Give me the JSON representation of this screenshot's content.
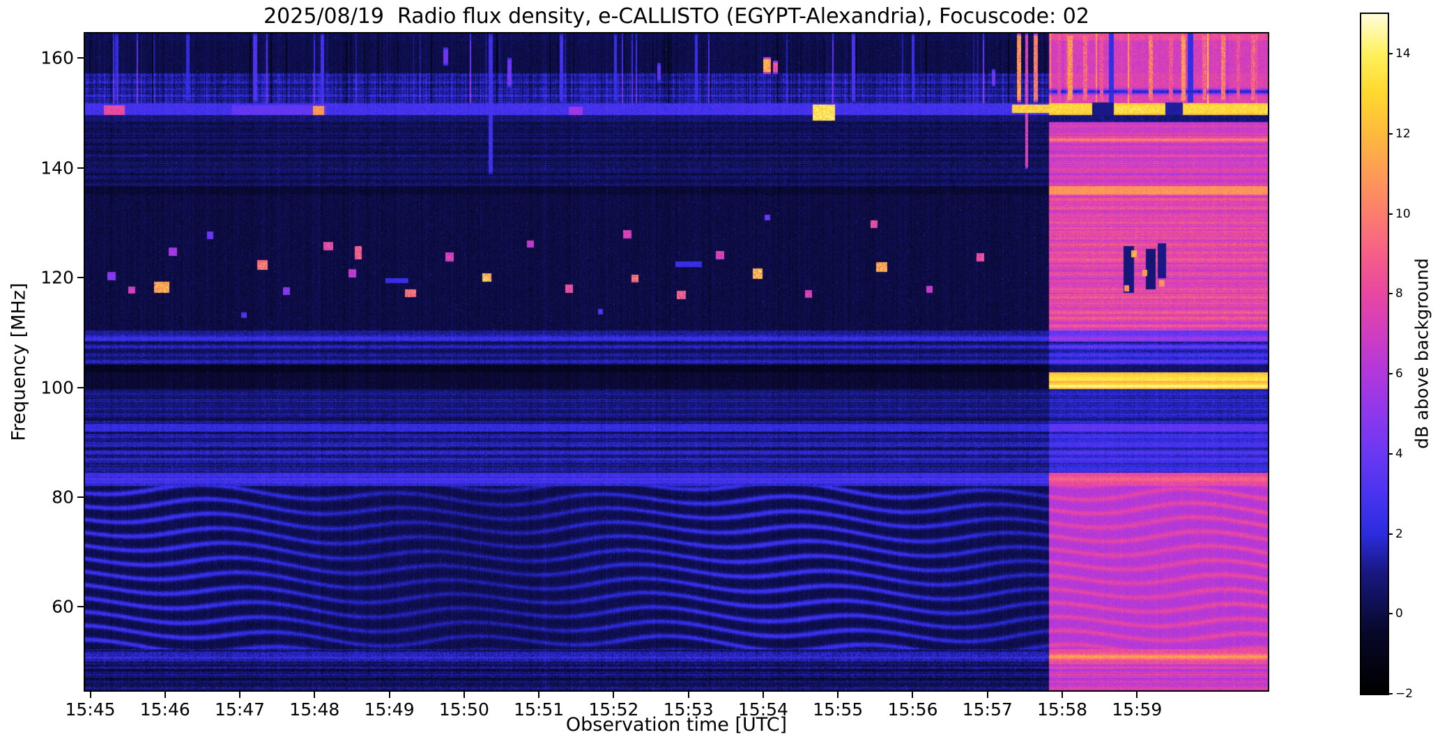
{
  "chart_data": {
    "type": "heatmap",
    "title": "2025/08/19  Radio flux density, e-CALLISTO (EGYPT-Alexandria), Focuscode: 02",
    "xlabel": "Observation time [UTC]",
    "ylabel": "Frequency [MHz]",
    "x_ticks": [
      "15:45",
      "15:46",
      "15:47",
      "15:48",
      "15:49",
      "15:50",
      "15:51",
      "15:52",
      "15:53",
      "15:54",
      "15:55",
      "15:56",
      "15:57",
      "15:58",
      "15:59"
    ],
    "x_tick_minutes": [
      0,
      1,
      2,
      3,
      4,
      5,
      6,
      7,
      8,
      9,
      10,
      11,
      12,
      13,
      14
    ],
    "x_range_minutes": [
      -0.07,
      15.75
    ],
    "y_ticks": [
      60,
      80,
      100,
      120,
      140,
      160
    ],
    "y_range_mhz": [
      44.8,
      164.5
    ],
    "grid": false,
    "colorbar": {
      "label": "dB above background",
      "vmin": -2,
      "vmax": 15,
      "ticks": [
        [
          14,
          "14"
        ],
        [
          12,
          "12"
        ],
        [
          10,
          "10"
        ],
        [
          8,
          "8"
        ],
        [
          6,
          "6"
        ],
        [
          4,
          "4"
        ],
        [
          2,
          "2"
        ],
        [
          0,
          "0"
        ],
        [
          -2,
          "−2"
        ]
      ]
    },
    "colormap_stops": [
      [
        -2,
        [
          0,
          0,
          0
        ]
      ],
      [
        -0.5,
        [
          8,
          8,
          42
        ]
      ],
      [
        1,
        [
          24,
          24,
          128
        ]
      ],
      [
        2,
        [
          45,
          45,
          224
        ]
      ],
      [
        3,
        [
          75,
          52,
          240
        ]
      ],
      [
        4,
        [
          108,
          56,
          243
        ]
      ],
      [
        5,
        [
          142,
          56,
          236
        ]
      ],
      [
        6,
        [
          177,
          56,
          221
        ]
      ],
      [
        7,
        [
          209,
          62,
          192
        ]
      ],
      [
        8,
        [
          233,
          72,
          162
        ]
      ],
      [
        9,
        [
          246,
          96,
          136
        ]
      ],
      [
        10,
        [
          252,
          126,
          110
        ]
      ],
      [
        11,
        [
          254,
          156,
          86
        ]
      ],
      [
        12,
        [
          255,
          186,
          62
        ]
      ],
      [
        13,
        [
          255,
          216,
          46
        ]
      ],
      [
        14,
        [
          255,
          241,
          94
        ]
      ],
      [
        15,
        [
          255,
          253,
          222
        ]
      ]
    ],
    "features": {
      "bright_region_start_min": 12.82,
      "fringe_band_mhz": [
        52.3,
        82.0
      ],
      "bands": [
        {
          "f": [
            44.8,
            49.5
          ],
          "L": {
            "base": 0.55,
            "noise": 1.1,
            "hstripe": 0.9
          },
          "R": {
            "base": 7.0,
            "noise": 1.2,
            "hstripe": 1.0
          }
        },
        {
          "f": [
            49.5,
            52.3
          ],
          "L": {
            "base": 1.0,
            "noise": 1.2,
            "hstripe": 0.7,
            "lines": [
              [
                50.9,
                1.3
              ]
            ]
          },
          "R": {
            "base": 8.2,
            "noise": 1.2,
            "lines": [
              [
                50.9,
                3.0
              ]
            ]
          }
        },
        {
          "f": [
            52.3,
            82.0
          ],
          "L": {
            "base": 0.15,
            "noise": 0.7,
            "fringe": 2.4
          },
          "R": {
            "base": 6.2,
            "noise": 1.1,
            "fringe": 2.8
          }
        },
        {
          "f": [
            82.0,
            84.4
          ],
          "L": {
            "base": 2.3,
            "noise": 1.0,
            "hstripe": 0.8,
            "lines": [
              [
                83.3,
                0.9
              ]
            ]
          },
          "R": {
            "base": 8.0,
            "noise": 1.1,
            "lines": [
              [
                83.3,
                1.2
              ]
            ]
          }
        },
        {
          "f": [
            84.4,
            92.0
          ],
          "L": {
            "base": 1.1,
            "noise": 0.9,
            "hstripe": 1.1
          },
          "R": {
            "base": 2.4,
            "noise": 0.9,
            "hstripe": 1.1
          }
        },
        {
          "f": [
            92.0,
            93.3
          ],
          "L": {
            "base": 2.2,
            "noise": 0.8
          },
          "R": {
            "base": 3.6,
            "noise": 0.8
          }
        },
        {
          "f": [
            93.3,
            99.7
          ],
          "L": {
            "base": 0.8,
            "noise": 0.8,
            "hstripe": 0.6
          },
          "R": {
            "base": 1.6,
            "noise": 0.8,
            "hstripe": 0.6
          }
        },
        {
          "f": [
            99.7,
            102.7
          ],
          "L": {
            "base": -0.3,
            "noise": 0.5
          },
          "R": {
            "base": 12.8,
            "noise": 0.9,
            "hstripe": 1.0,
            "lines": [
              [
                100.2,
                1.0
              ],
              [
                101.9,
                0.8
              ]
            ]
          }
        },
        {
          "f": [
            102.7,
            104.2
          ],
          "L": {
            "base": -0.8,
            "noise": 0.4
          },
          "R": {
            "base": 0.6,
            "noise": 0.8
          }
        },
        {
          "f": [
            104.2,
            108.3
          ],
          "L": {
            "base": 0.1,
            "noise": 0.8,
            "lines": [
              [
                104.7,
                1.7
              ],
              [
                105.9,
                1.2
              ],
              [
                107.4,
                1.7
              ]
            ]
          },
          "R": {
            "base": 1.0,
            "noise": 1.0,
            "lines": [
              [
                104.7,
                2.6
              ],
              [
                105.9,
                2.0
              ],
              [
                107.4,
                2.9
              ]
            ]
          }
        },
        {
          "f": [
            108.3,
            110.4
          ],
          "L": {
            "base": 1.2,
            "noise": 0.9,
            "lines": [
              [
                108.9,
                1.4
              ]
            ]
          },
          "R": {
            "base": 3.8,
            "noise": 1.2,
            "lines": [
              [
                108.9,
                1.8
              ]
            ]
          }
        },
        {
          "f": [
            110.4,
            135.2
          ],
          "L": {
            "base": 0.0,
            "noise": 0.7
          },
          "R": {
            "base": 7.8,
            "noise": 1.3,
            "hstripe": 1.1
          }
        },
        {
          "f": [
            135.2,
            136.7
          ],
          "L": {
            "base": -0.3,
            "noise": 0.5
          },
          "R": {
            "base": 10.8,
            "noise": 1.0
          }
        },
        {
          "f": [
            136.7,
            148.3
          ],
          "L": {
            "base": 0.4,
            "noise": 0.9,
            "hstripe": 0.5
          },
          "R": {
            "base": 7.2,
            "noise": 1.2,
            "hstripe": 0.9,
            "lines": [
              [
                145.2,
                2.5
              ]
            ]
          }
        },
        {
          "f": [
            148.3,
            149.6
          ],
          "L": {
            "base": 0.8,
            "noise": 0.8
          },
          "R": {
            "base": 0.8,
            "noise": 0.9
          }
        },
        {
          "f": [
            149.6,
            151.8
          ],
          "L": {
            "base": 2.8,
            "noise": 1.0
          },
          "R": {
            "base": 12.5,
            "noise": 1.3
          }
        },
        {
          "f": [
            151.8,
            157.2
          ],
          "L": {
            "base": 1.3,
            "noise": 1.1,
            "hstripe": 0.7,
            "vstreak": 1.0,
            "vnoise": 1
          },
          "R": {
            "base": 7.6,
            "noise": 1.4,
            "vstreak": 1.0,
            "lines": [
              [
                153.9,
                -6
              ]
            ]
          }
        },
        {
          "f": [
            157.2,
            163.2
          ],
          "L": {
            "base": 0.1,
            "noise": 0.6,
            "vstreak": 1.0
          },
          "R": {
            "base": 7.2,
            "noise": 1.4,
            "vstreak": 1.0
          }
        },
        {
          "f": [
            163.2,
            164.6
          ],
          "L": {
            "base": 0.3,
            "noise": 0.8,
            "vstreak": 0.6
          },
          "R": {
            "base": 8.2,
            "noise": 1.2,
            "vstreak": 0.8
          }
        }
      ],
      "blobs": [
        [
          0.28,
          120.3,
          0.1,
          1.4,
          6
        ],
        [
          0.55,
          117.8,
          0.08,
          1.2,
          9
        ],
        [
          0.95,
          118.3,
          0.2,
          2.0,
          14
        ],
        [
          1.1,
          124.8,
          0.1,
          1.4,
          7
        ],
        [
          1.6,
          127.8,
          0.08,
          1.2,
          5
        ],
        [
          2.3,
          122.4,
          0.13,
          1.6,
          12
        ],
        [
          2.62,
          117.6,
          0.08,
          1.2,
          6
        ],
        [
          3.18,
          125.8,
          0.12,
          1.5,
          10
        ],
        [
          3.5,
          120.9,
          0.1,
          1.4,
          8
        ],
        [
          3.58,
          124.6,
          0.08,
          2.4,
          11
        ],
        [
          4.28,
          117.2,
          0.14,
          1.3,
          12
        ],
        [
          4.8,
          123.8,
          0.1,
          1.5,
          9
        ],
        [
          5.3,
          120.1,
          0.12,
          1.5,
          15
        ],
        [
          5.88,
          126.2,
          0.08,
          1.2,
          8
        ],
        [
          6.4,
          118.0,
          0.1,
          1.4,
          10
        ],
        [
          7.18,
          128.0,
          0.1,
          1.4,
          9
        ],
        [
          7.28,
          119.9,
          0.08,
          1.2,
          12
        ],
        [
          7.9,
          116.9,
          0.12,
          1.3,
          11
        ],
        [
          8.42,
          124.1,
          0.1,
          1.4,
          9
        ],
        [
          8.92,
          120.8,
          0.12,
          1.7,
          15
        ],
        [
          9.6,
          117.1,
          0.08,
          1.2,
          9
        ],
        [
          10.48,
          129.8,
          0.08,
          1.3,
          10
        ],
        [
          10.58,
          122.0,
          0.14,
          1.7,
          14
        ],
        [
          11.22,
          117.9,
          0.08,
          1.2,
          8
        ],
        [
          11.9,
          123.8,
          0.1,
          1.4,
          10
        ],
        [
          2.05,
          113.2,
          0.06,
          0.9,
          4
        ],
        [
          6.82,
          113.9,
          0.06,
          0.9,
          4
        ],
        [
          9.05,
          131.0,
          0.06,
          0.9,
          5
        ],
        [
          4.1,
          119.5,
          0.3,
          0.8,
          3
        ],
        [
          8.0,
          122.5,
          0.35,
          0.8,
          3
        ]
      ],
      "vstreaks": [
        [
          5.35,
          139,
          164.5,
          0.05,
          3.2
        ],
        [
          9.05,
          157.3,
          160.2,
          0.09,
          14
        ],
        [
          9.16,
          157.3,
          159.6,
          0.05,
          10
        ],
        [
          4.75,
          158.8,
          162.0,
          0.05,
          5
        ],
        [
          5.6,
          154.8,
          160.0,
          0.05,
          5
        ],
        [
          7.6,
          155.8,
          159.2,
          0.04,
          4.5
        ],
        [
          12.08,
          155.0,
          158.0,
          0.04,
          5
        ],
        [
          2.2,
          152.0,
          164.5,
          0.04,
          3.8
        ],
        [
          3.1,
          150.0,
          164.5,
          0.035,
          3.4
        ],
        [
          6.3,
          152.0,
          164.5,
          0.035,
          3.4
        ],
        [
          7.02,
          152.0,
          164.5,
          0.035,
          3.0
        ],
        [
          8.1,
          152.0,
          164.5,
          0.035,
          3.0
        ],
        [
          10.2,
          152.0,
          164.5,
          0.035,
          3.6
        ],
        [
          11.0,
          152.0,
          164.5,
          0.035,
          3.0
        ],
        [
          0.35,
          152.0,
          164.5,
          0.03,
          2.6
        ],
        [
          1.3,
          152.0,
          164.5,
          0.03,
          2.6
        ],
        [
          12.42,
          152,
          164.8,
          0.05,
          13
        ],
        [
          12.52,
          140,
          164.8,
          0.035,
          9
        ],
        [
          12.64,
          152,
          164.8,
          0.05,
          12
        ],
        [
          12.95,
          152,
          164.8,
          0.04,
          9
        ],
        [
          13.1,
          152,
          164.8,
          0.055,
          13
        ],
        [
          13.3,
          152,
          164.8,
          0.045,
          11
        ],
        [
          13.52,
          152,
          164.8,
          0.04,
          10
        ],
        [
          13.9,
          152,
          164.8,
          0.04,
          9
        ],
        [
          14.18,
          152,
          164.8,
          0.05,
          12
        ],
        [
          14.45,
          152,
          164.8,
          0.04,
          10
        ],
        [
          14.62,
          152,
          164.8,
          0.05,
          13
        ],
        [
          14.9,
          152,
          164.8,
          0.04,
          11
        ],
        [
          15.15,
          152,
          164.8,
          0.05,
          12
        ],
        [
          15.35,
          152,
          164.8,
          0.04,
          10
        ],
        [
          15.55,
          152,
          164.8,
          0.04,
          11
        ]
      ],
      "segments": [
        [
          0.18,
          0.45,
          149.7,
          151.4,
          9,
          "max"
        ],
        [
          1.9,
          3.15,
          149.8,
          151.4,
          4.2,
          "max"
        ],
        [
          2.98,
          3.12,
          149.8,
          151.3,
          12,
          "max"
        ],
        [
          9.66,
          9.95,
          148.7,
          151.6,
          15,
          "max"
        ],
        [
          6.4,
          6.58,
          149.8,
          151.1,
          6,
          "max"
        ],
        [
          12.33,
          13.38,
          150.1,
          151.5,
          14.2,
          "max"
        ],
        [
          13.7,
          14.36,
          150.1,
          151.4,
          14.6,
          "max"
        ],
        [
          14.62,
          15.75,
          150.1,
          151.5,
          14.3,
          "max"
        ],
        [
          13.4,
          13.68,
          149.7,
          151.9,
          1.2,
          "min"
        ],
        [
          14.38,
          14.6,
          149.7,
          151.9,
          1.5,
          "min"
        ],
        [
          13.82,
          13.95,
          117.3,
          125.8,
          1.0,
          "min"
        ],
        [
          14.12,
          14.24,
          118.0,
          125.2,
          0.9,
          "min"
        ],
        [
          14.28,
          14.38,
          120.0,
          126.2,
          1.2,
          "min"
        ],
        [
          13.92,
          13.99,
          123.9,
          125.0,
          13,
          "max"
        ],
        [
          14.07,
          14.13,
          120.4,
          121.4,
          12.5,
          "max"
        ],
        [
          13.83,
          13.89,
          117.6,
          118.6,
          12,
          "max"
        ],
        [
          14.3,
          14.36,
          118.5,
          119.5,
          12,
          "max"
        ],
        [
          13.62,
          13.68,
          152.0,
          164.8,
          2.5,
          "min"
        ],
        [
          14.68,
          14.74,
          152.0,
          164.8,
          2.5,
          "min"
        ]
      ]
    }
  }
}
